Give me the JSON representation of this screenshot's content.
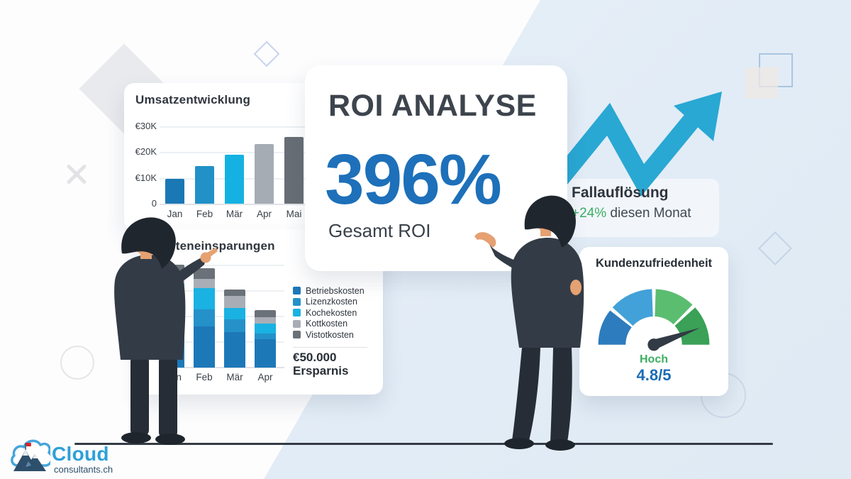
{
  "palette": {
    "accent_blue": "#1d70b9",
    "cyan": "#19b2e2",
    "arrow_blue": "#29a8d4",
    "green": "#3cae62",
    "dark_text": "#2f363e",
    "panel_blue": "#e2ecf6"
  },
  "roi_card": {
    "title": "ROI ANALYSE",
    "value": "396%",
    "caption": "Gesamt ROI"
  },
  "fall_block": {
    "title": "Fallauflösung",
    "delta": "+24%",
    "suffix": "diesen Monat"
  },
  "logo": {
    "brand": "Cloud",
    "domain": "consultants.ch",
    "icon": "cloud-mountain-swiss-flag"
  },
  "chart_data": [
    {
      "type": "bar",
      "title": "Umsatzentwicklung",
      "categories": [
        "Jan",
        "Feb",
        "Mär",
        "Apr",
        "Mai"
      ],
      "values": [
        9.5,
        14.5,
        19,
        23,
        26
      ],
      "unit": "€K",
      "ylim": [
        0,
        30
      ],
      "ytick_labels": [
        "€30K",
        "€20K",
        "€10K",
        "0"
      ],
      "bar_colors": [
        "#1a78b5",
        "#2191c8",
        "#14b2e2",
        "#a6acb4",
        "#686e75"
      ],
      "grid": true,
      "xlabel": "",
      "ylabel": ""
    },
    {
      "type": "stacked-bar",
      "title": "Kosteneinsparungen",
      "categories": [
        "Jan",
        "Feb",
        "Mär",
        "Apr"
      ],
      "series": [
        {
          "name": "Betriebskosten",
          "color": "#1d78b8",
          "values": [
            60,
            58,
            50,
            40
          ]
        },
        {
          "name": "Lizenzkosten",
          "color": "#2491c9",
          "values": [
            25,
            24,
            18,
            8
          ]
        },
        {
          "name": "Kochekosten",
          "color": "#19b2e2",
          "values": [
            33,
            30,
            16,
            14
          ]
        },
        {
          "name": "Kottkosten",
          "color": "#a9aeb6",
          "values": [
            14,
            13,
            17,
            9
          ]
        },
        {
          "name": "Vistotkosten",
          "color": "#6b7178",
          "values": [
            13,
            15,
            9,
            10
          ]
        }
      ],
      "legend_position": "right",
      "annotation": {
        "amount": "€50.000",
        "label": "Ersparnis"
      },
      "grid": true
    },
    {
      "type": "gauge",
      "title": "Kundenzufriedenheit",
      "segments": [
        {
          "from": 180,
          "to": 142,
          "color": "#2d7cbd"
        },
        {
          "from": 138,
          "to": 92,
          "color": "#41a1d8"
        },
        {
          "from": 88,
          "to": 46,
          "color": "#5bbd70"
        },
        {
          "from": 42,
          "to": 0,
          "color": "#3aa156"
        }
      ],
      "needle_angle_deg": 20,
      "level_label": "Hoch",
      "score": "4.8/5"
    }
  ]
}
